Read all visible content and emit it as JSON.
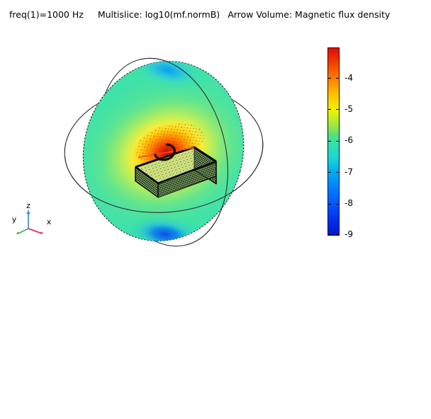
{
  "title": {
    "segments": [
      "freq(1)=1000 Hz",
      "Multislice: log10(mf.normB)",
      "Arrow Volume: Magnetic flux density"
    ]
  },
  "colorbar": {
    "tick_labels": [
      "-4",
      "-5",
      "-6",
      "-7",
      "-8",
      "-9"
    ],
    "border_color": "#111111",
    "gradient_stops": [
      [
        "0%",
        "#dd0f00"
      ],
      [
        "6%",
        "#f13100"
      ],
      [
        "16.2%",
        "#ff7e00"
      ],
      [
        "24.5%",
        "#ffc000"
      ],
      [
        "32.9%",
        "#f2f200"
      ],
      [
        "41.2%",
        "#9fe83f"
      ],
      [
        "46.5%",
        "#55df7d"
      ],
      [
        "49.6%",
        "#3ce29d"
      ],
      [
        "57.9%",
        "#1ed9d2"
      ],
      [
        "66.2%",
        "#00aef2"
      ],
      [
        "74.6%",
        "#0080ff"
      ],
      [
        "82.9%",
        "#0059ff"
      ],
      [
        "91.3%",
        "#0033f2"
      ],
      [
        "100%",
        "#0019ce"
      ]
    ]
  },
  "axis_triad": {
    "x_label": "x",
    "y_label": "y",
    "z_label": "z",
    "x_color": "#e0336e",
    "y_color": "#3cb44a",
    "z_color": "#4a90d9"
  },
  "scene": {
    "slice_base_color": "#3fe2a8",
    "hotspot_color": "#b80d00",
    "edge_low_color": "#0a4fe6",
    "arrow_color": "#cc2d08",
    "coil_color": "#1d0d05"
  },
  "chart_data": {
    "type": "heatmap",
    "title": "freq(1)=1000 Hz  Multislice: log10(mf.normB)  Arrow Volume: Magnetic flux density",
    "frequency_label": "freq(1)=1000 Hz",
    "plotted_expression": "log10(mf.normB)",
    "arrow_quantity": "Magnetic flux density",
    "colorbar_ticks": [
      -4,
      -5,
      -6,
      -7,
      -8,
      -9
    ],
    "colorbar_range": [
      -9,
      -3
    ],
    "colormap": "rainbow (dark blue -> cyan -> green -> yellow -> orange -> red)",
    "legend_position": "right",
    "scene_elements": [
      "spherical air domain wireframe (two great circles)",
      "colored multislice disk",
      "rectangular coil/PCB box with hatched walls",
      "semicircular coil current arrows",
      "red arrow-volume cones",
      "xyz axis triad"
    ],
    "field_readings": {
      "hotspot_center_log10B": -3.2,
      "ambient_slice_log10B": -6.2,
      "slice_edge_blue_spots_log10B": -7.8
    }
  }
}
